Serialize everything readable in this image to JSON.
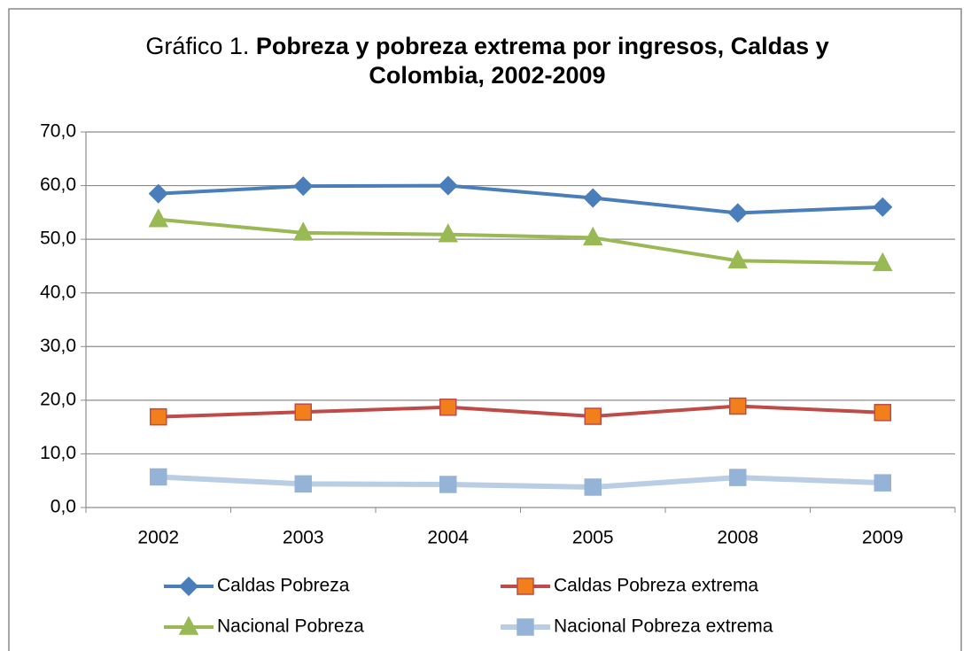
{
  "chart_data": {
    "type": "line",
    "title_parts": [
      "Gráfico 1.",
      "Pobreza y pobreza extrema por ingresos, Caldas y Colombia, 2002-2009"
    ],
    "categories": [
      "2002",
      "2003",
      "2004",
      "2005",
      "2008",
      "2009"
    ],
    "series": [
      {
        "name": "Caldas Pobreza",
        "color": "#4a7ebb",
        "marker": "diamond",
        "values": [
          58.5,
          59.9,
          60.0,
          57.7,
          54.9,
          56.0
        ]
      },
      {
        "name": "Caldas Pobreza extrema",
        "color": "#be4b48",
        "marker": "square",
        "values": [
          16.9,
          17.8,
          18.7,
          17.0,
          18.9,
          17.7
        ]
      },
      {
        "name": "Nacional Pobreza",
        "color": "#98b954",
        "marker": "triangle",
        "values": [
          53.7,
          51.2,
          50.9,
          50.3,
          46.0,
          45.5
        ]
      },
      {
        "name": "Nacional Pobreza extrema",
        "color": "#b9cde5",
        "marker_color": "#95b3d7",
        "marker": "square",
        "values": [
          5.7,
          4.4,
          4.3,
          3.8,
          5.6,
          4.6
        ]
      }
    ],
    "ylim": [
      0,
      70
    ],
    "yticks": [
      {
        "value": 0,
        "label": "0,0"
      },
      {
        "value": 10,
        "label": "10,0"
      },
      {
        "value": 20,
        "label": "20,0"
      },
      {
        "value": 30,
        "label": "30,0"
      },
      {
        "value": 40,
        "label": "40,0"
      },
      {
        "value": 50,
        "label": "50,0"
      },
      {
        "value": 60,
        "label": "60,0"
      },
      {
        "value": 70,
        "label": "70,0"
      }
    ],
    "grid": true,
    "legend": "bottom"
  }
}
